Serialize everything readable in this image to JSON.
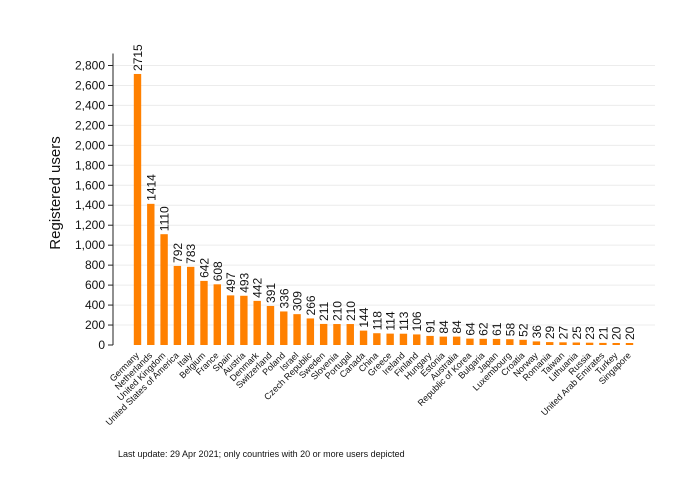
{
  "chart_data": {
    "type": "bar",
    "ylabel": "Registered users",
    "ylim": [
      0,
      2900
    ],
    "yticks": [
      0,
      200,
      400,
      600,
      800,
      1000,
      1200,
      1400,
      1600,
      1800,
      2000,
      2200,
      2400,
      2600,
      2800
    ],
    "ytick_labels": [
      "0",
      "200",
      "400",
      "600",
      "800",
      "1,000",
      "1,200",
      "1,400",
      "1,600",
      "1,800",
      "2,000",
      "2,200",
      "2,400",
      "2,600",
      "2,800"
    ],
    "grid": true,
    "bar_color": "#ff8000",
    "categories": [
      "Germany",
      "Netherlands",
      "United Kingdom",
      "United States of America",
      "Italy",
      "Belgium",
      "France",
      "Spain",
      "Austria",
      "Denmark",
      "Switzerland",
      "Poland",
      "Israel",
      "Czech Republic",
      "Sweden",
      "Slovenia",
      "Portugal",
      "Canada",
      "China",
      "Greece",
      "Ireland",
      "Finland",
      "Hungary",
      "Estonia",
      "Australia",
      "Republic of Korea",
      "Bulgaria",
      "Japan",
      "Luxembourg",
      "Croatia",
      "Norway",
      "Romania",
      "Taiwan",
      "Lithuania",
      "Russia",
      "United Arab Emirates",
      "Turkey",
      "Singapore"
    ],
    "values": [
      2715,
      1414,
      1110,
      792,
      783,
      642,
      608,
      497,
      493,
      442,
      391,
      336,
      309,
      266,
      211,
      210,
      210,
      144,
      118,
      114,
      113,
      106,
      91,
      84,
      84,
      64,
      62,
      61,
      58,
      52,
      36,
      29,
      27,
      25,
      23,
      21,
      20,
      20
    ]
  },
  "footnote": "Last update: 29 Apr 2021; only countries with 20 or more users depicted"
}
